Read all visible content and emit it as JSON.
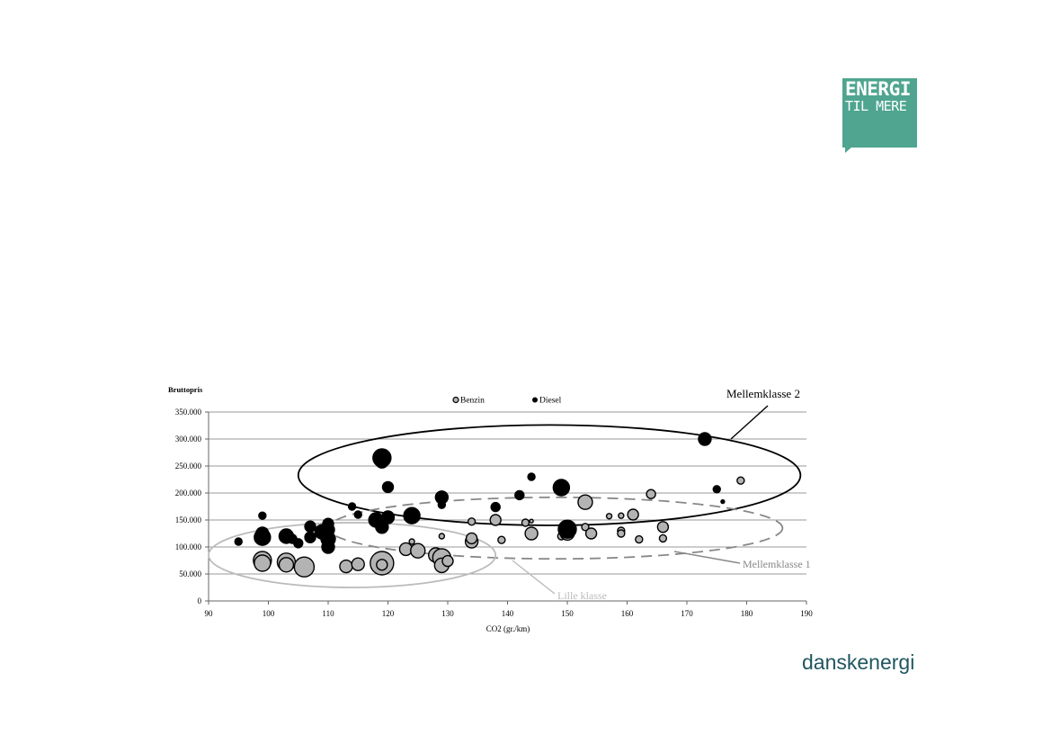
{
  "logo": {
    "line1": "ENERGI",
    "line2": "TIL MERE",
    "color": "#4fa58f"
  },
  "brand": "danskenergi",
  "chart_data": {
    "type": "scatter",
    "ylabel": "Bruttopris",
    "xlabel": "CO2 (gr./km)",
    "xlim": [
      90,
      190
    ],
    "ylim": [
      0,
      350000
    ],
    "x_ticks": [
      "90",
      "100",
      "110",
      "120",
      "130",
      "140",
      "150",
      "160",
      "170",
      "180",
      "190"
    ],
    "y_ticks": [
      "0",
      "50.000",
      "100.000",
      "150.000",
      "200.000",
      "250.000",
      "300.000",
      "350.000"
    ],
    "grid": true,
    "legend_position": "top-center",
    "series": [
      {
        "name": "Benzin",
        "color": "#b3b3b3",
        "points": [
          [
            99,
            75000,
            10
          ],
          [
            99,
            70000,
            9
          ],
          [
            103,
            72000,
            10
          ],
          [
            103,
            67000,
            8
          ],
          [
            106,
            63000,
            11
          ],
          [
            113,
            64000,
            7
          ],
          [
            115,
            68000,
            7
          ],
          [
            119,
            70000,
            13
          ],
          [
            119,
            67000,
            6
          ],
          [
            123,
            96000,
            7
          ],
          [
            124,
            110000,
            3
          ],
          [
            125,
            93000,
            8
          ],
          [
            128,
            85000,
            8
          ],
          [
            129,
            80000,
            10
          ],
          [
            129,
            66000,
            8
          ],
          [
            129,
            120000,
            3
          ],
          [
            130,
            74000,
            6
          ],
          [
            134,
            110000,
            7
          ],
          [
            134,
            116000,
            6
          ],
          [
            134,
            147000,
            4
          ],
          [
            138,
            150000,
            6
          ],
          [
            139,
            113000,
            4
          ],
          [
            143,
            145000,
            4
          ],
          [
            144,
            148000,
            2
          ],
          [
            144,
            125000,
            7
          ],
          [
            149,
            120000,
            4
          ],
          [
            150,
            126000,
            8
          ],
          [
            150,
            135000,
            6
          ],
          [
            153,
            183000,
            8
          ],
          [
            153,
            137000,
            4
          ],
          [
            154,
            125000,
            6
          ],
          [
            157,
            157000,
            3
          ],
          [
            159,
            158000,
            3
          ],
          [
            159,
            130000,
            4
          ],
          [
            159,
            125000,
            4
          ],
          [
            161,
            160000,
            6
          ],
          [
            162,
            114000,
            4
          ],
          [
            164,
            198000,
            5
          ],
          [
            166,
            137000,
            6
          ],
          [
            166,
            116000,
            4
          ],
          [
            179,
            223000,
            4
          ]
        ]
      },
      {
        "name": "Diesel",
        "color": "#000000",
        "points": [
          [
            95,
            110000,
            4
          ],
          [
            99,
            158000,
            4
          ],
          [
            99,
            118000,
            9
          ],
          [
            99,
            125000,
            7
          ],
          [
            103,
            120000,
            8
          ],
          [
            104,
            115000,
            5
          ],
          [
            105,
            107000,
            5
          ],
          [
            107,
            138000,
            6
          ],
          [
            107,
            118000,
            6
          ],
          [
            109,
            128000,
            8
          ],
          [
            110,
            143000,
            6
          ],
          [
            110,
            132000,
            7
          ],
          [
            110,
            115000,
            8
          ],
          [
            110,
            100000,
            7
          ],
          [
            114,
            175000,
            4
          ],
          [
            115,
            160000,
            4
          ],
          [
            118,
            150000,
            8
          ],
          [
            119,
            137000,
            7
          ],
          [
            119,
            265000,
            10
          ],
          [
            119,
            258000,
            7
          ],
          [
            120,
            155000,
            7
          ],
          [
            120,
            211000,
            6
          ],
          [
            124,
            158000,
            9
          ],
          [
            129,
            192000,
            7
          ],
          [
            129,
            178000,
            4
          ],
          [
            138,
            174000,
            5
          ],
          [
            142,
            196000,
            5
          ],
          [
            144,
            230000,
            4
          ],
          [
            149,
            210000,
            9
          ],
          [
            150,
            133000,
            10
          ],
          [
            150,
            130000,
            7
          ],
          [
            173,
            300000,
            7
          ],
          [
            175,
            207000,
            4
          ],
          [
            176,
            184000,
            2
          ]
        ]
      }
    ],
    "annotations": [
      {
        "text": "Mellemklasse 2",
        "color": "#000000"
      },
      {
        "text": "Mellemklasse 1",
        "color": "#888888"
      },
      {
        "text": "Lille klasse",
        "color": "#bbbbbb"
      }
    ],
    "groups": [
      {
        "name": "Mellemklasse 2",
        "cx": 147,
        "cy": 233000,
        "rx": 42,
        "ry": 93000,
        "style": "solid",
        "color": "#000000"
      },
      {
        "name": "Mellemklasse 1",
        "cx": 148,
        "cy": 135000,
        "rx": 38,
        "ry": 57000,
        "style": "dashed",
        "color": "#888888"
      },
      {
        "name": "Lille klasse",
        "cx": 114,
        "cy": 85000,
        "rx": 24,
        "ry": 60000,
        "style": "solid",
        "color": "#bbbbbb"
      }
    ]
  }
}
